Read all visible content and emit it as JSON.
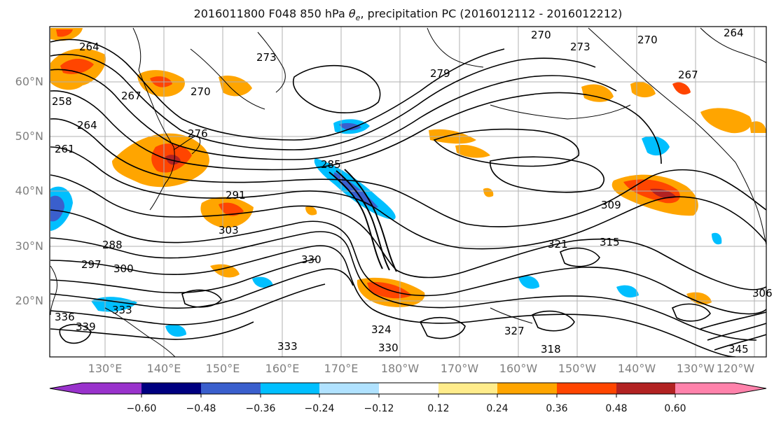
{
  "title_main": "2016011800 F048 850 hPa ",
  "title_symbol": "θ",
  "title_sub": "e",
  "title_rest": ", precipitation PC (2016012112 - 2016012212)",
  "lat_labels": [
    "60°N",
    "50°N",
    "40°N",
    "30°N",
    "20°N"
  ],
  "lon_labels": [
    "130°E",
    "140°E",
    "150°E",
    "160°E",
    "170°E",
    "180°W",
    "170°W",
    "160°W",
    "150°W",
    "140°W",
    "130°W",
    "120°W"
  ],
  "colorbar": {
    "ticks": [
      "−0.60",
      "−0.48",
      "−0.36",
      "−0.24",
      "−0.12",
      "0.12",
      "0.24",
      "0.36",
      "0.48",
      "0.60"
    ],
    "colors": [
      "#9932cc",
      "#000080",
      "#3a5fcd",
      "#00bfff",
      "#b0e2ff",
      "#ffffff",
      "#ffec8b",
      "#ffa500",
      "#ff4500",
      "#b22222",
      "#ff82ab"
    ]
  },
  "contour_labels": [
    "264",
    "273",
    "270",
    "270",
    "264",
    "267",
    "267",
    "270",
    "258",
    "264",
    "261",
    "276",
    "279",
    "285",
    "291",
    "303",
    "297",
    "300",
    "288",
    "330",
    "309",
    "315",
    "321",
    "333",
    "336",
    "339",
    "330",
    "333",
    "324",
    "345",
    "306",
    "318",
    "327",
    "273"
  ]
}
